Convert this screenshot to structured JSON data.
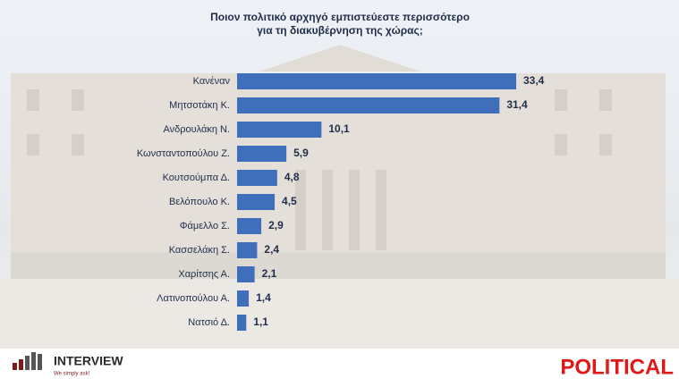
{
  "chart_data": {
    "type": "hbar",
    "title": [
      "Ποιον πολιτικό αρχηγό εμπιστεύεστε περισσότερο",
      "για τη διακυβέρνηση της χώρας;"
    ],
    "categories": [
      "Κανέναν",
      "Μητσοτάκη Κ.",
      "Ανδρουλάκη Ν.",
      "Κωνσταντοπούλου Ζ.",
      "Κουτσούμπα Δ.",
      "Βελόπουλο Κ.",
      "Φάμελλο Σ.",
      "Κασσελάκη Σ.",
      "Χαρίτσης Α.",
      "Λατινοπούλου Α.",
      "Νατσιό Δ."
    ],
    "values": [
      33.4,
      31.4,
      10.1,
      5.9,
      4.8,
      4.5,
      2.9,
      2.4,
      2.1,
      1.4,
      1.1
    ],
    "value_labels": [
      "33,4",
      "31,4",
      "10,1",
      "5,9",
      "4,8",
      "4,5",
      "2,9",
      "2,4",
      "2,1",
      "1,4",
      "1,1"
    ],
    "color": "#3f6fba"
  },
  "logos": {
    "left": "INTERVIEW",
    "left_tagline": "We simply ask!",
    "right": "POLITICAL"
  }
}
